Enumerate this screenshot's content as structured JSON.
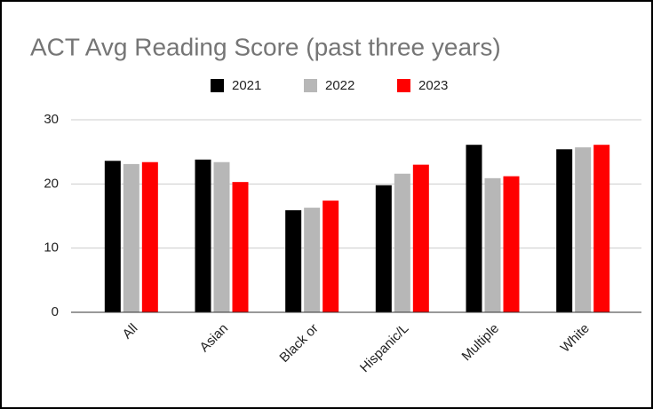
{
  "chart_data": {
    "type": "bar",
    "title": "ACT Avg Reading Score (past three years)",
    "categories": [
      "All",
      "Asian",
      "Black or",
      "Hispanic/L",
      "Multiple",
      "White"
    ],
    "series": [
      {
        "name": "2021",
        "color": "#000000",
        "values": [
          23.6,
          23.8,
          15.9,
          19.8,
          26.1,
          25.4
        ]
      },
      {
        "name": "2022",
        "color": "#b7b7b7",
        "values": [
          23.1,
          23.4,
          16.3,
          21.6,
          20.9,
          25.7
        ]
      },
      {
        "name": "2023",
        "color": "#ff0000",
        "values": [
          23.4,
          20.3,
          17.4,
          23.0,
          21.2,
          26.1
        ]
      }
    ],
    "ylim": [
      0,
      30
    ],
    "yticks": [
      0,
      10,
      20,
      30
    ],
    "grid": true,
    "legend": "top"
  }
}
